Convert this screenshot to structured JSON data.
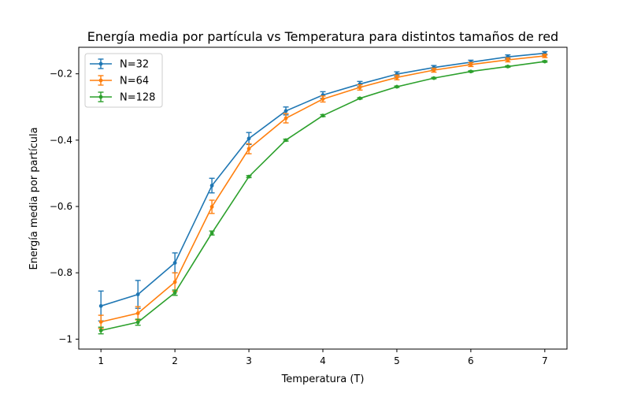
{
  "chart_data": {
    "type": "line",
    "title": "Energía media por partícula vs Temperatura para distintos tamaños de red",
    "xlabel": "Temperatura (T)",
    "ylabel": "Energía media por partícula",
    "xlim": [
      0.7,
      7.3
    ],
    "ylim": [
      -1.03,
      -0.12
    ],
    "xticks": [
      1,
      2,
      3,
      4,
      5,
      6,
      7
    ],
    "yticks": [
      -1.0,
      -0.8,
      -0.6,
      -0.4,
      -0.2
    ],
    "grid": false,
    "legend_position": "top-left",
    "x": [
      1.0,
      1.5,
      2.0,
      2.5,
      3.0,
      3.5,
      4.0,
      4.5,
      5.0,
      5.5,
      6.0,
      6.5,
      7.0
    ],
    "series": [
      {
        "name": "N=32",
        "color": "#1f77b4",
        "values": [
          -0.9,
          -0.865,
          -0.77,
          -0.537,
          -0.395,
          -0.312,
          -0.264,
          -0.231,
          -0.201,
          -0.181,
          -0.165,
          -0.149,
          -0.138
        ],
        "errors": [
          0.045,
          0.042,
          0.03,
          0.022,
          0.018,
          0.012,
          0.01,
          0.008,
          0.007,
          0.006,
          0.006,
          0.006,
          0.005
        ]
      },
      {
        "name": "N=64",
        "color": "#ff7f0e",
        "values": [
          -0.948,
          -0.922,
          -0.828,
          -0.601,
          -0.426,
          -0.334,
          -0.276,
          -0.241,
          -0.211,
          -0.189,
          -0.172,
          -0.158,
          -0.146
        ],
        "errors": [
          0.02,
          0.02,
          0.028,
          0.02,
          0.015,
          0.014,
          0.009,
          0.008,
          0.007,
          0.006,
          0.006,
          0.006,
          0.005
        ]
      },
      {
        "name": "N=128",
        "color": "#2ca02c",
        "values": [
          -0.974,
          -0.949,
          -0.86,
          -0.68,
          -0.51,
          -0.4,
          -0.326,
          -0.274,
          -0.239,
          -0.213,
          -0.193,
          -0.178,
          -0.163
        ],
        "errors": [
          0.01,
          0.009,
          0.008,
          0.006,
          0.003,
          0.003,
          0.003,
          0.002,
          0.002,
          0.002,
          0.002,
          0.002,
          0.002
        ]
      }
    ]
  }
}
